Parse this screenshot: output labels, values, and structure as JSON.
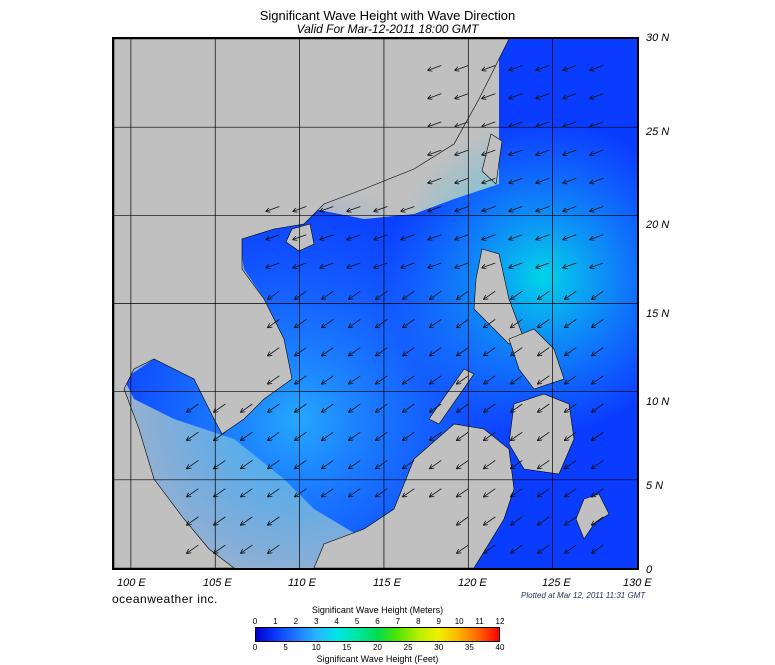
{
  "title": "Significant Wave Height with Wave Direction",
  "subtitle": "Valid For Mar-12-2011 18:00 GMT",
  "brand": "oceanweather inc.",
  "plotted": "Plotted at Mar 12, 2011 11:31 GMT",
  "map": {
    "lon_min": 99,
    "lon_max": 130,
    "lat_min": 0,
    "lat_max": 30,
    "lat_labels": [
      "30 N",
      "25 N",
      "20 N",
      "15 N",
      "10 N",
      "5 N",
      "0"
    ],
    "lon_labels": [
      "100 E",
      "105 E",
      "110 E",
      "115 E",
      "120 E",
      "125 E",
      "130 E"
    ],
    "arrow_direction": "toward southwest",
    "land_color": "#c0c0c0"
  },
  "legend": {
    "meters_label": "Significant Wave Height (Meters)",
    "feet_label": "Significant Wave Height (Feet)",
    "meters_ticks": [
      "0",
      "1",
      "2",
      "3",
      "4",
      "5",
      "6",
      "7",
      "8",
      "9",
      "10",
      "11",
      "12"
    ],
    "feet_ticks": [
      "0",
      "5",
      "10",
      "15",
      "20",
      "25",
      "30",
      "35",
      "40"
    ],
    "colors": [
      "#0000cc",
      "#0a3cff",
      "#1e78ff",
      "#28b4ff",
      "#00e6e6",
      "#00e6a0",
      "#00dc50",
      "#50e600",
      "#b4f000",
      "#f0f000",
      "#ffb400",
      "#ff6400",
      "#ff0000"
    ]
  }
}
